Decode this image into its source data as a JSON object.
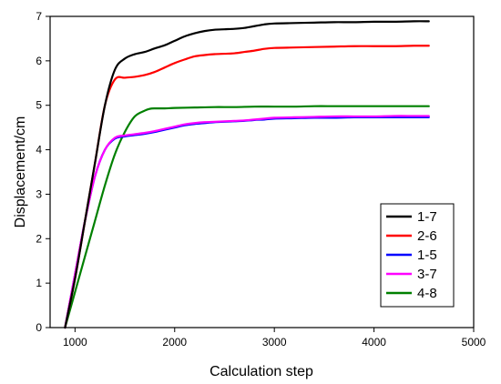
{
  "chart_data": {
    "type": "line",
    "title": "",
    "xlabel": "Calculation step",
    "ylabel": "Displacement/cm",
    "xlim": [
      750,
      5000
    ],
    "ylim": [
      0,
      7
    ],
    "xticks": [
      1000,
      2000,
      3000,
      4000,
      5000
    ],
    "yticks": [
      0,
      1,
      2,
      3,
      4,
      5,
      6,
      7
    ],
    "grid": false,
    "legend_position": "bottom-right",
    "series": [
      {
        "name": "1-7",
        "color": "#000000",
        "x": [
          900,
          1000,
          1100,
          1200,
          1300,
          1400,
          1500,
          1600,
          1700,
          1800,
          1900,
          2000,
          2100,
          2200,
          2300,
          2400,
          2500,
          2600,
          2700,
          2800,
          2900,
          3000,
          3200,
          3400,
          3600,
          3800,
          4000,
          4200,
          4400,
          4550
        ],
        "y": [
          0.0,
          1.1,
          2.4,
          3.7,
          5.0,
          5.8,
          6.05,
          6.15,
          6.2,
          6.28,
          6.35,
          6.45,
          6.55,
          6.62,
          6.67,
          6.7,
          6.71,
          6.72,
          6.74,
          6.78,
          6.82,
          6.84,
          6.85,
          6.86,
          6.87,
          6.87,
          6.88,
          6.88,
          6.89,
          6.89
        ]
      },
      {
        "name": "2-6",
        "color": "#ff0000",
        "x": [
          900,
          1000,
          1100,
          1200,
          1300,
          1400,
          1500,
          1600,
          1700,
          1800,
          1900,
          2000,
          2100,
          2200,
          2300,
          2400,
          2500,
          2600,
          2700,
          2800,
          2900,
          3000,
          3200,
          3400,
          3600,
          3800,
          4000,
          4200,
          4400,
          4550
        ],
        "y": [
          0.0,
          1.1,
          2.4,
          3.7,
          5.0,
          5.58,
          5.62,
          5.64,
          5.68,
          5.75,
          5.85,
          5.95,
          6.03,
          6.1,
          6.13,
          6.15,
          6.16,
          6.17,
          6.2,
          6.23,
          6.27,
          6.29,
          6.3,
          6.31,
          6.32,
          6.33,
          6.33,
          6.33,
          6.34,
          6.34
        ]
      },
      {
        "name": "1-5",
        "color": "#0000ff",
        "x": [
          900,
          1000,
          1100,
          1200,
          1300,
          1400,
          1500,
          1600,
          1700,
          1800,
          1900,
          2000,
          2100,
          2200,
          2300,
          2400,
          2500,
          2600,
          2700,
          2800,
          2900,
          3000,
          3200,
          3400,
          3600,
          3800,
          4000,
          4200,
          4400,
          4550
        ],
        "y": [
          0.0,
          1.2,
          2.4,
          3.4,
          4.0,
          4.25,
          4.3,
          4.33,
          4.36,
          4.4,
          4.45,
          4.5,
          4.55,
          4.58,
          4.6,
          4.62,
          4.63,
          4.64,
          4.65,
          4.67,
          4.68,
          4.7,
          4.71,
          4.72,
          4.72,
          4.73,
          4.73,
          4.73,
          4.73,
          4.73
        ]
      },
      {
        "name": "3-7",
        "color": "#ff00ff",
        "x": [
          900,
          1000,
          1100,
          1200,
          1300,
          1400,
          1500,
          1600,
          1700,
          1800,
          1900,
          2000,
          2100,
          2200,
          2300,
          2400,
          2500,
          2600,
          2700,
          2800,
          2900,
          3000,
          3200,
          3400,
          3600,
          3800,
          4000,
          4200,
          4400,
          4550
        ],
        "y": [
          0.0,
          1.2,
          2.4,
          3.4,
          4.0,
          4.27,
          4.32,
          4.35,
          4.38,
          4.42,
          4.47,
          4.52,
          4.57,
          4.6,
          4.62,
          4.63,
          4.64,
          4.65,
          4.66,
          4.68,
          4.7,
          4.72,
          4.73,
          4.74,
          4.75,
          4.75,
          4.75,
          4.76,
          4.76,
          4.76
        ]
      },
      {
        "name": "4-8",
        "color": "#008000",
        "x": [
          900,
          1000,
          1100,
          1200,
          1300,
          1400,
          1500,
          1600,
          1700,
          1750,
          1800,
          1900,
          2000,
          2200,
          2400,
          2600,
          2800,
          3000,
          3200,
          3400,
          3600,
          3800,
          4000,
          4200,
          4400,
          4550
        ],
        "y": [
          0.0,
          0.8,
          1.6,
          2.4,
          3.2,
          3.9,
          4.4,
          4.75,
          4.88,
          4.92,
          4.93,
          4.93,
          4.94,
          4.95,
          4.96,
          4.96,
          4.97,
          4.97,
          4.97,
          4.98,
          4.98,
          4.98,
          4.98,
          4.98,
          4.98,
          4.98
        ]
      }
    ]
  }
}
